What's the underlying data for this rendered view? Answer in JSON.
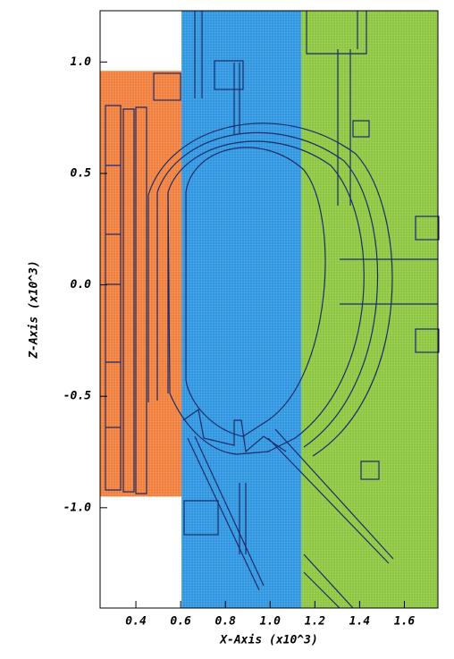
{
  "chart_data": {
    "type": "region",
    "x_label": "X-Axis (x10^3)",
    "y_label": "Z-Axis (x10^3)",
    "xlim": [
      0.24,
      1.75
    ],
    "ylim": [
      -1.45,
      1.23
    ],
    "xticks": [
      0.4,
      0.6,
      0.8,
      {
        "value": 1,
        "label": "1.0"
      },
      1.2,
      1.4,
      1.6
    ],
    "yticks": [
      {
        "value": -1,
        "label": "-1.0"
      },
      -0.5,
      {
        "value": 0,
        "label": "0.0"
      },
      0.5,
      {
        "value": 1,
        "label": "1.0"
      }
    ],
    "regions": [
      {
        "color": "#f07f3c",
        "x": [
          0.24,
          0.604
        ],
        "y": [
          -0.95,
          0.96
        ]
      },
      {
        "color": "#2e95e0",
        "x": [
          0.604,
          1.14
        ],
        "y": [
          -1.45,
          1.23
        ]
      },
      {
        "color": "#8cc63f",
        "x": [
          1.14,
          1.75
        ],
        "y": [
          -1.45,
          1.23
        ]
      }
    ]
  }
}
